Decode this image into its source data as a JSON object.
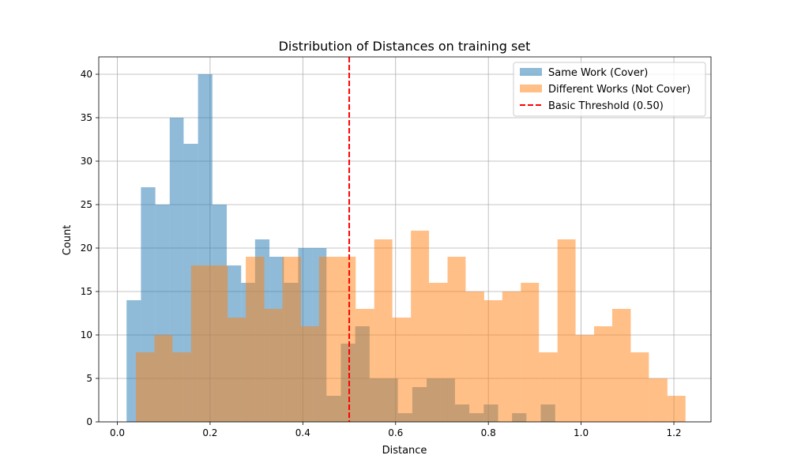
{
  "chart_data": {
    "type": "bar",
    "title": "Distribution of Distances on training set",
    "xlabel": "Distance",
    "ylabel": "Count",
    "xlim": [
      -0.04,
      1.28
    ],
    "ylim": [
      0,
      42
    ],
    "grid": true,
    "legend_position": "top-right",
    "xticks": [
      0.0,
      0.2,
      0.4,
      0.6,
      0.8,
      1.0,
      1.2
    ],
    "xtick_labels": [
      "0.0",
      "0.2",
      "0.4",
      "0.6",
      "0.8",
      "1.0",
      "1.2"
    ],
    "yticks": [
      0,
      5,
      10,
      15,
      20,
      25,
      30,
      35,
      40
    ],
    "ytick_labels": [
      "0",
      "5",
      "10",
      "15",
      "20",
      "25",
      "30",
      "35",
      "40"
    ],
    "series": [
      {
        "name": "Same Work (Cover)",
        "color": "#1f77b4",
        "opacity": 0.5,
        "bins": [
          [
            0.02,
            0.051,
            14
          ],
          [
            0.051,
            0.082,
            27
          ],
          [
            0.082,
            0.113,
            25
          ],
          [
            0.113,
            0.143,
            35
          ],
          [
            0.143,
            0.174,
            32
          ],
          [
            0.174,
            0.205,
            40
          ],
          [
            0.205,
            0.236,
            25
          ],
          [
            0.236,
            0.267,
            18
          ],
          [
            0.267,
            0.297,
            16
          ],
          [
            0.297,
            0.328,
            21
          ],
          [
            0.328,
            0.359,
            19
          ],
          [
            0.359,
            0.39,
            16
          ],
          [
            0.39,
            0.42,
            20
          ],
          [
            0.42,
            0.451,
            20
          ],
          [
            0.451,
            0.482,
            3
          ],
          [
            0.482,
            0.513,
            9
          ],
          [
            0.513,
            0.544,
            11
          ],
          [
            0.544,
            0.574,
            5
          ],
          [
            0.574,
            0.605,
            5
          ],
          [
            0.605,
            0.636,
            1
          ],
          [
            0.636,
            0.667,
            4
          ],
          [
            0.667,
            0.697,
            5
          ],
          [
            0.697,
            0.728,
            5
          ],
          [
            0.728,
            0.759,
            2
          ],
          [
            0.759,
            0.79,
            1
          ],
          [
            0.79,
            0.821,
            2
          ],
          [
            0.821,
            0.851,
            0
          ],
          [
            0.851,
            0.882,
            1
          ],
          [
            0.882,
            0.913,
            0
          ],
          [
            0.913,
            0.944,
            2
          ]
        ]
      },
      {
        "name": "Different Works (Not Cover)",
        "color": "#ff7f0e",
        "opacity": 0.5,
        "bins": [
          [
            0.04,
            0.08,
            8
          ],
          [
            0.08,
            0.119,
            10
          ],
          [
            0.119,
            0.159,
            8
          ],
          [
            0.159,
            0.198,
            18
          ],
          [
            0.198,
            0.238,
            18
          ],
          [
            0.238,
            0.277,
            12
          ],
          [
            0.277,
            0.317,
            19
          ],
          [
            0.317,
            0.356,
            13
          ],
          [
            0.356,
            0.396,
            19
          ],
          [
            0.396,
            0.435,
            11
          ],
          [
            0.435,
            0.475,
            19
          ],
          [
            0.475,
            0.514,
            19
          ],
          [
            0.514,
            0.554,
            13
          ],
          [
            0.554,
            0.593,
            21
          ],
          [
            0.593,
            0.633,
            12
          ],
          [
            0.633,
            0.672,
            22
          ],
          [
            0.672,
            0.712,
            16
          ],
          [
            0.712,
            0.751,
            19
          ],
          [
            0.751,
            0.791,
            15
          ],
          [
            0.791,
            0.83,
            14
          ],
          [
            0.83,
            0.87,
            15
          ],
          [
            0.87,
            0.909,
            16
          ],
          [
            0.909,
            0.949,
            8
          ],
          [
            0.949,
            0.988,
            21
          ],
          [
            0.988,
            1.028,
            10
          ],
          [
            1.028,
            1.067,
            11
          ],
          [
            1.067,
            1.107,
            13
          ],
          [
            1.107,
            1.146,
            8
          ],
          [
            1.146,
            1.186,
            5
          ],
          [
            1.186,
            1.225,
            3
          ]
        ]
      }
    ],
    "threshold": {
      "label": "Basic Threshold (0.50)",
      "x": 0.5,
      "color": "#ff0000",
      "style": "dashed"
    }
  }
}
